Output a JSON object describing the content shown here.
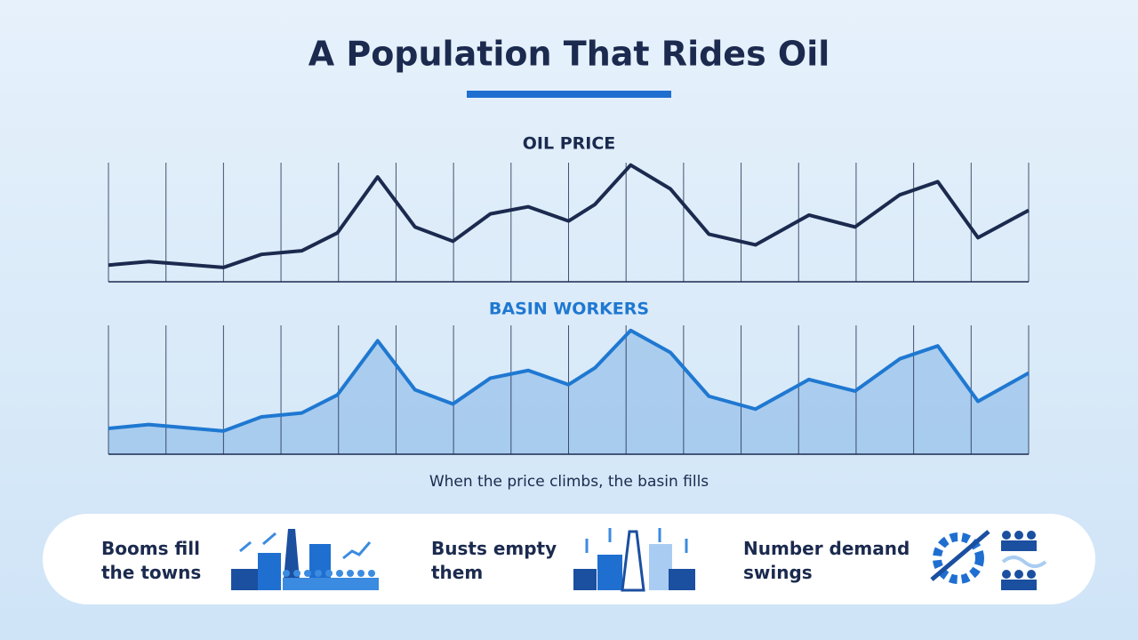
{
  "title": "A Population That Rides Oil",
  "chart_data": [
    {
      "type": "line",
      "title": "OIL PRICE",
      "color": "#1b2a4e",
      "x": [
        0,
        0.7,
        2,
        2.66,
        3.36,
        3.98,
        4.68,
        5.33,
        5.99,
        6.64,
        7.3,
        8,
        8.46,
        9.08,
        9.77,
        10.44,
        11.25,
        12.18,
        12.98,
        13.76,
        14.42,
        15.12,
        16
      ],
      "values": [
        14,
        17,
        12,
        23,
        26,
        41,
        88,
        46,
        34,
        57,
        63,
        51,
        65,
        98,
        78,
        40,
        31,
        56,
        46,
        73,
        84,
        37,
        60
      ],
      "xlim": [
        0,
        16
      ],
      "xticks": [
        0,
        1,
        2,
        3,
        4,
        5,
        6,
        7,
        8,
        9,
        10,
        11,
        12,
        13,
        14,
        15,
        16
      ],
      "ylim": [
        0,
        100
      ]
    },
    {
      "type": "area",
      "title": "BASIN WORKERS",
      "color": "#1f78d1",
      "x": [
        0,
        0.7,
        2,
        2.66,
        3.36,
        3.98,
        4.68,
        5.33,
        5.99,
        6.64,
        7.3,
        8,
        8.46,
        9.08,
        9.77,
        10.44,
        11.25,
        12.18,
        12.98,
        13.76,
        14.42,
        15.12,
        16
      ],
      "values": [
        20,
        23,
        18,
        29,
        32,
        46,
        88,
        50,
        39,
        59,
        65,
        54,
        67,
        96,
        79,
        45,
        35,
        58,
        49,
        74,
        84,
        41,
        63
      ],
      "xlim": [
        0,
        16
      ],
      "xticks": [
        0,
        1,
        2,
        3,
        4,
        5,
        6,
        7,
        8,
        9,
        10,
        11,
        12,
        13,
        14,
        15,
        16
      ],
      "ylim": [
        0,
        100
      ]
    }
  ],
  "caption": "When the price climbs, the basin fills",
  "cards": [
    {
      "text": "Booms fill the towns"
    },
    {
      "text": "Busts empty them"
    },
    {
      "text": "Number demand swings"
    }
  ]
}
